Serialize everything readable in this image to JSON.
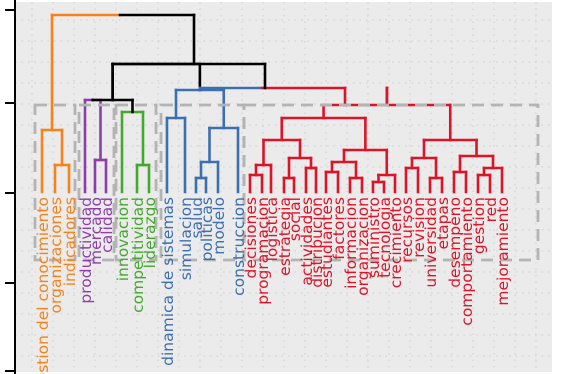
{
  "colors": {
    "orange": "#f7821b",
    "purple": "#8c3fa6",
    "green": "#44a82f",
    "blue": "#3c6eb0",
    "red": "#dc1428",
    "root": "#000000",
    "background": "#ebebeb",
    "grid": "#d2d2d2",
    "box": "#b4b4b4"
  },
  "clusters": [
    {
      "id": "orange",
      "color_key": "orange",
      "labels": [
        "gestion del conocimiento",
        "organizaciones",
        "indicadores"
      ]
    },
    {
      "id": "purple",
      "color_key": "purple",
      "labels": [
        "productividad",
        "mercado",
        "calidad"
      ]
    },
    {
      "id": "green",
      "color_key": "green",
      "labels": [
        "innovacion",
        "competitividad",
        "liderazgo"
      ]
    },
    {
      "id": "blue",
      "color_key": "blue",
      "labels": [
        "dinamica de sistemas",
        "simulacion",
        "salud",
        "politicas",
        "modelo",
        "construccion"
      ]
    },
    {
      "id": "red",
      "color_key": "red",
      "labels": [
        "decisiones",
        "programacion",
        "logistica",
        "estrategia",
        "social",
        "actividades",
        "distribucion",
        "estudiantes",
        "factores",
        "informacion",
        "organizacion",
        "suministro",
        "tecnologia",
        "crecimiento",
        "recursos",
        "revision",
        "universidad",
        "etapas",
        "desempeno",
        "comportamiento",
        "gestion",
        "red",
        "mejoramiento"
      ]
    }
  ]
}
